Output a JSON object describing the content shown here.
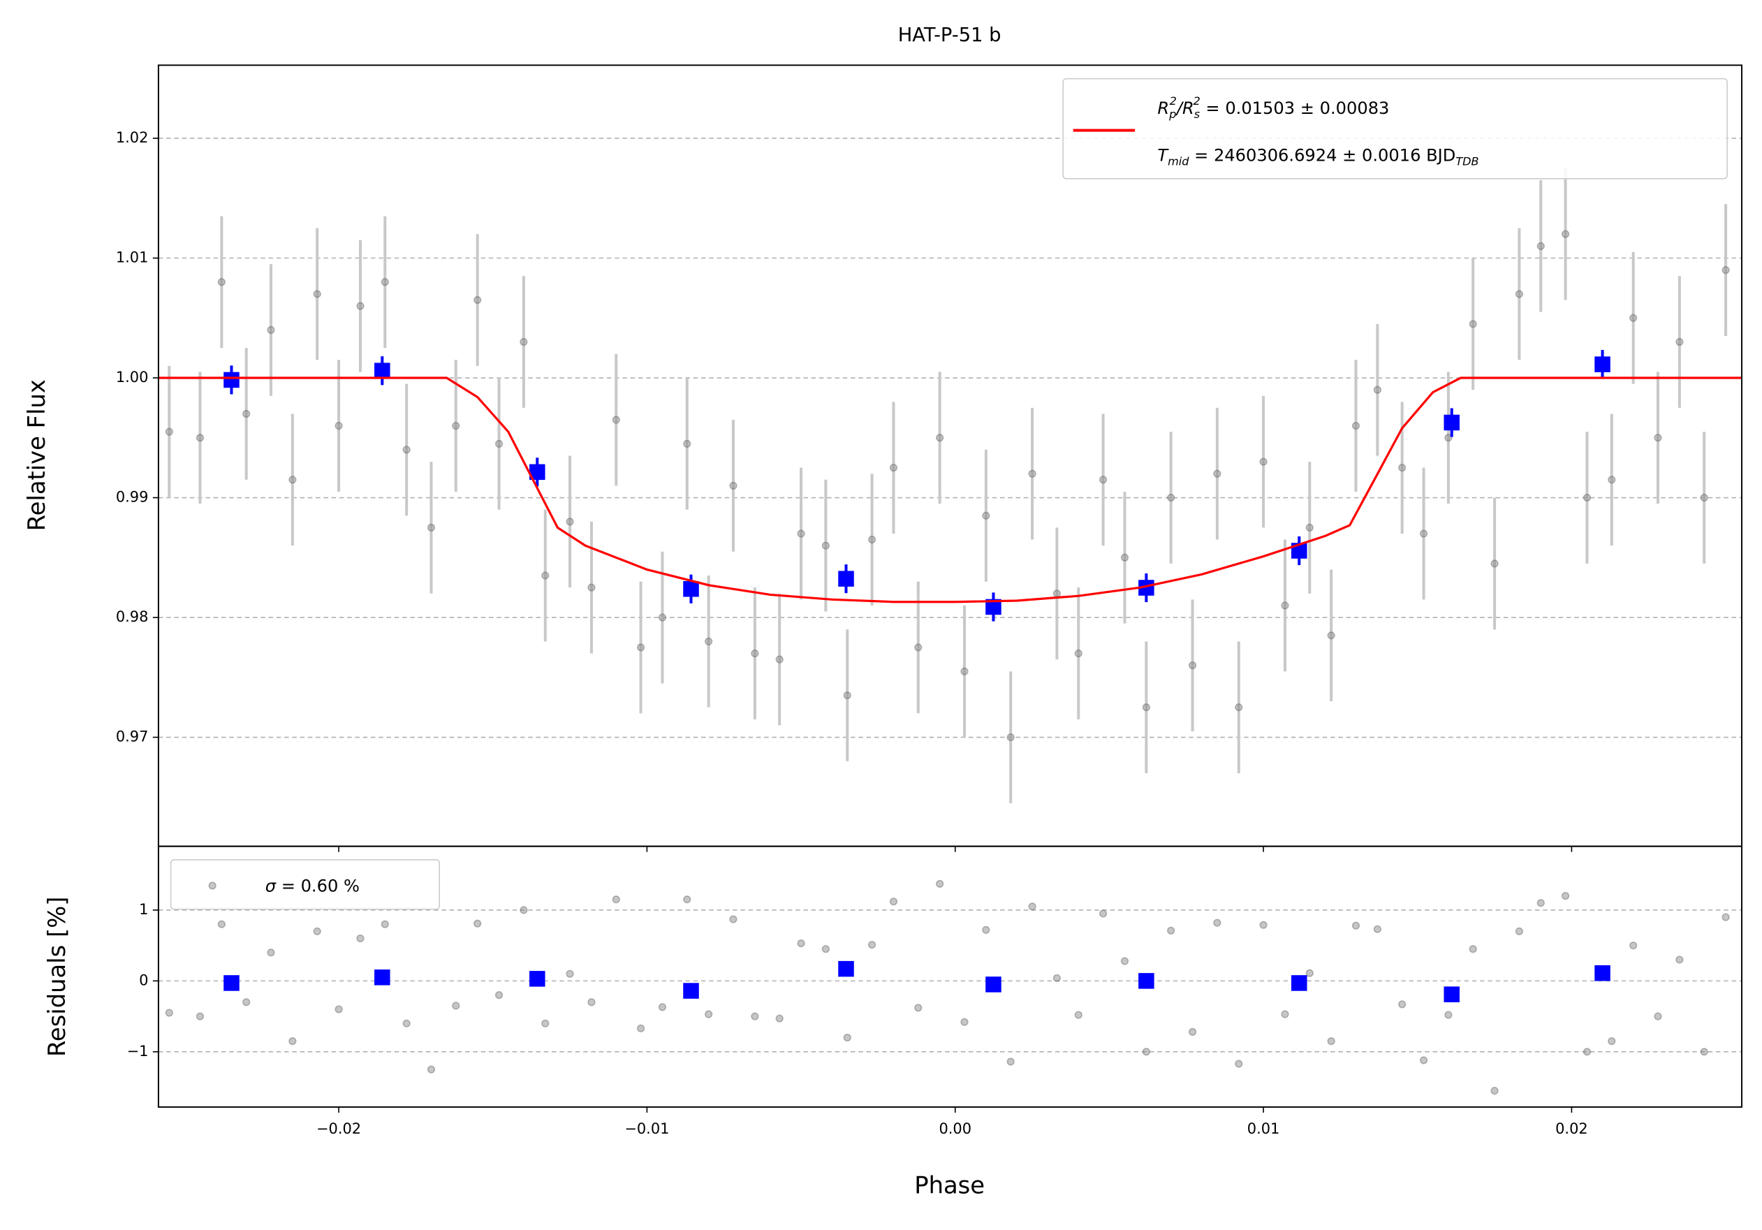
{
  "chart_data": [
    {
      "type": "scatter",
      "title": "HAT-P-51 b",
      "y_label": "Relative Flux",
      "xlim": [
        -0.02585,
        0.02552
      ],
      "ylim": [
        0.9609,
        1.0261
      ],
      "yticks": [
        0.97,
        0.98,
        0.99,
        {
          "value": 1.0,
          "label": "1.00"
        },
        1.01,
        1.02
      ],
      "grid": true,
      "legend": "upper right",
      "series": [
        {
          "color": "#808080",
          "x": [
            -0.0255,
            -0.0245,
            -0.0238,
            -0.023,
            -0.0222,
            -0.0215,
            -0.0207,
            -0.02,
            -0.0193,
            -0.0185,
            -0.0178,
            -0.017,
            -0.0162,
            -0.0155,
            -0.0148,
            -0.014,
            -0.0133,
            -0.0125,
            -0.0118,
            -0.011,
            -0.0102,
            -0.0095,
            -0.0087,
            -0.008,
            -0.0072,
            -0.0065,
            -0.0057,
            -0.005,
            -0.0042,
            -0.0035,
            -0.0027,
            -0.002,
            -0.0012,
            -0.0005,
            0.0003,
            0.001,
            0.0018,
            0.0025,
            0.0033,
            0.004,
            0.0048,
            0.0055,
            0.0062,
            0.007,
            0.0077,
            0.0085,
            0.0092,
            0.01,
            0.0107,
            0.0115,
            0.0122,
            0.013,
            0.0137,
            0.0145,
            0.0152,
            0.016,
            0.0168,
            0.0175,
            0.0183,
            0.019,
            0.0198,
            0.0205,
            0.0213,
            0.022,
            0.0228,
            0.0235,
            0.0243,
            0.025
          ],
          "values": [
            0.9955,
            0.995,
            1.008,
            0.997,
            1.004,
            0.9915,
            1.007,
            0.996,
            1.006,
            1.008,
            0.994,
            0.9875,
            0.996,
            1.0065,
            0.9945,
            1.003,
            0.9835,
            0.988,
            0.9825,
            0.9965,
            0.9775,
            0.98,
            0.9945,
            0.978,
            0.991,
            0.977,
            0.9765,
            0.987,
            0.986,
            0.9735,
            0.9865,
            0.9925,
            0.9775,
            0.995,
            0.9755,
            0.9885,
            0.97,
            0.992,
            0.982,
            0.977,
            0.9915,
            0.985,
            0.9725,
            0.99,
            0.976,
            0.992,
            0.9725,
            0.993,
            0.981,
            0.9875,
            0.9785,
            0.996,
            0.999,
            0.9925,
            0.987,
            0.995,
            1.0045,
            0.9845,
            1.007,
            1.011,
            1.012,
            0.99,
            0.9915,
            1.005,
            0.995,
            1.003,
            0.99,
            1.009
          ],
          "errors": [
            0.0055,
            0.0055,
            0.0055,
            0.0055,
            0.0055,
            0.0055,
            0.0055,
            0.0055,
            0.0055,
            0.0055,
            0.0055,
            0.0055,
            0.0055,
            0.0055,
            0.0055,
            0.0055,
            0.0055,
            0.0055,
            0.0055,
            0.0055,
            0.0055,
            0.0055,
            0.0055,
            0.0055,
            0.0055,
            0.0055,
            0.0055,
            0.0055,
            0.0055,
            0.0055,
            0.0055,
            0.0055,
            0.0055,
            0.0055,
            0.0055,
            0.0055,
            0.0055,
            0.0055,
            0.0055,
            0.0055,
            0.0055,
            0.0055,
            0.0055,
            0.0055,
            0.0055,
            0.0055,
            0.0055,
            0.0055,
            0.0055,
            0.0055,
            0.0055,
            0.0055,
            0.0055,
            0.0055,
            0.0055,
            0.0055,
            0.0055,
            0.0055,
            0.0055,
            0.0055,
            0.0055,
            0.0055,
            0.0055,
            0.0055,
            0.0055,
            0.0055,
            0.0055,
            0.0055
          ]
        },
        {
          "color": "#0000ff",
          "marker": "square",
          "x": [
            -0.02348,
            -0.01859,
            -0.01356,
            -0.00857,
            -0.00354,
            0.00124,
            0.0062,
            0.01116,
            0.01611,
            0.021
          ],
          "values": [
            0.99983,
            1.0006,
            0.99214,
            0.98238,
            0.98323,
            0.98088,
            0.98248,
            0.98557,
            0.99627,
            1.00113
          ],
          "errors": [
            0.0012,
            0.0012,
            0.0012,
            0.0012,
            0.0012,
            0.0012,
            0.0012,
            0.0012,
            0.0012,
            0.0012
          ]
        },
        {
          "type": "line",
          "color": "#ff0000",
          "name": [
            [
              {
                "t": "R",
                "i": true
              },
              {
                "sub": "p",
                "sup": "2",
                "i": true
              },
              {
                "t": "/R",
                "i": true
              },
              {
                "sub": "s",
                "sup": "2",
                "i": true
              },
              {
                "t": " = 0.01503 ± 0.00083"
              }
            ],
            [
              {
                "t": "T",
                "i": true
              },
              {
                "sub": "mid",
                "i": true
              },
              {
                "t": " = 2460306.6924 ± 0.0016 BJD"
              },
              {
                "sub": "TDB",
                "i": true
              }
            ]
          ],
          "x": [
            -0.02585,
            -0.0165,
            -0.0155,
            -0.0145,
            -0.0137,
            -0.0129,
            -0.012,
            -0.01,
            -0.008,
            -0.006,
            -0.004,
            -0.002,
            0,
            0.002,
            0.004,
            0.006,
            0.008,
            0.01,
            0.012,
            0.0128,
            0.0136,
            0.0145,
            0.0155,
            0.0164,
            0.02552
          ],
          "values": [
            1.0,
            1.0,
            0.9984,
            0.9955,
            0.9915,
            0.9875,
            0.986,
            0.984,
            0.9827,
            0.9819,
            0.9815,
            0.9813,
            0.9813,
            0.9814,
            0.9818,
            0.9825,
            0.9836,
            0.9851,
            0.9868,
            0.9877,
            0.9915,
            0.9958,
            0.9988,
            1.0,
            1.0
          ]
        }
      ]
    },
    {
      "type": "scatter",
      "x_label": "Phase",
      "y_label": "Residuals [%]",
      "xlim": [
        -0.02585,
        0.02552
      ],
      "ylim": [
        -1.78,
        1.9
      ],
      "xticks": [
        {
          "value": -0.02,
          "label": "−0.02"
        },
        {
          "value": -0.01,
          "label": "−0.01"
        },
        {
          "value": 0,
          "label": "0.00"
        },
        0.01,
        0.02
      ],
      "yticks": [
        {
          "value": -1,
          "label": "−1"
        },
        0,
        1
      ],
      "grid": true,
      "legend": "upper left",
      "series": [
        {
          "color": "#808080",
          "name": [
            [
              {
                "t": "σ",
                "i": true
              },
              {
                "t": " = 0.60 %"
              }
            ]
          ],
          "x": [
            -0.0255,
            -0.0245,
            -0.0238,
            -0.023,
            -0.0222,
            -0.0215,
            -0.0207,
            -0.02,
            -0.0193,
            -0.0185,
            -0.0178,
            -0.017,
            -0.0162,
            -0.0155,
            -0.0148,
            -0.014,
            -0.0133,
            -0.0125,
            -0.0118,
            -0.011,
            -0.0102,
            -0.0095,
            -0.0087,
            -0.008,
            -0.0072,
            -0.0065,
            -0.0057,
            -0.005,
            -0.0042,
            -0.0035,
            -0.0027,
            -0.002,
            -0.0012,
            -0.0005,
            0.0003,
            0.001,
            0.0018,
            0.0025,
            0.0033,
            0.004,
            0.0048,
            0.0055,
            0.0062,
            0.007,
            0.0077,
            0.0085,
            0.0092,
            0.01,
            0.0107,
            0.0115,
            0.0122,
            0.013,
            0.0137,
            0.0145,
            0.0152,
            0.016,
            0.0168,
            0.0175,
            0.0183,
            0.019,
            0.0198,
            0.0205,
            0.0213,
            0.022,
            0.0228,
            0.0235,
            0.0243,
            0.025
          ],
          "values": [
            -0.45,
            -0.5,
            0.8,
            -0.3,
            0.4,
            -0.85,
            0.7,
            -0.4,
            0.6,
            0.8,
            -0.6,
            -1.25,
            -0.35,
            0.81,
            -0.2,
            1.0,
            -0.6,
            0.1,
            -0.3,
            1.15,
            -0.67,
            -0.37,
            1.15,
            -0.47,
            0.87,
            -0.5,
            -0.53,
            0.53,
            0.45,
            -0.8,
            0.51,
            1.12,
            -0.38,
            1.37,
            -0.58,
            0.72,
            -1.14,
            1.05,
            0.04,
            -0.48,
            0.95,
            0.28,
            -1.0,
            0.71,
            -0.72,
            0.82,
            -1.17,
            0.79,
            -0.47,
            0.11,
            -0.85,
            0.78,
            0.73,
            -0.33,
            -1.12,
            -0.48,
            0.45,
            -1.55,
            0.7,
            1.1,
            1.2,
            -1.0,
            -0.85,
            0.5,
            -0.5,
            0.3,
            -1.0,
            0.9
          ]
        },
        {
          "color": "#0000ff",
          "marker": "square",
          "x": [
            -0.02348,
            -0.01859,
            -0.01356,
            -0.00857,
            -0.00354,
            0.00124,
            0.0062,
            0.01116,
            0.01611,
            0.021
          ],
          "values": [
            -0.03,
            0.05,
            0.03,
            -0.14,
            0.17,
            -0.05,
            0.0,
            -0.03,
            -0.19,
            0.11
          ]
        }
      ]
    }
  ]
}
